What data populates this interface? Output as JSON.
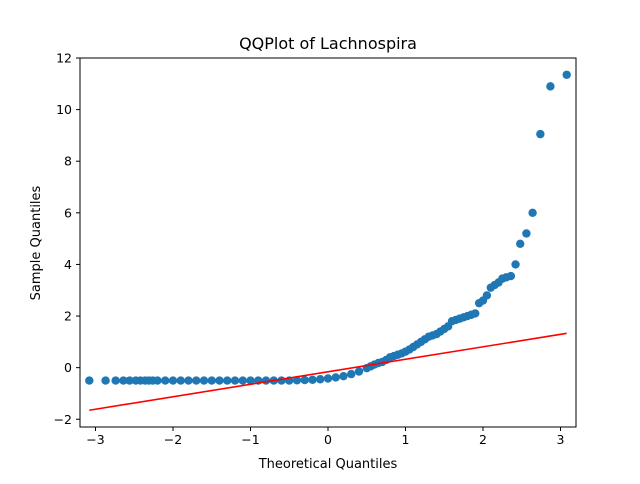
{
  "chart_data": {
    "type": "scatter",
    "title": "QQPlot of Lachnospira",
    "xlabel": "Theoretical Quantiles",
    "ylabel": "Sample Quantiles",
    "xlim": [
      -3.2,
      3.2
    ],
    "ylim": [
      -2.3,
      12
    ],
    "xticks": [
      -3,
      -2,
      -1,
      0,
      1,
      2,
      3
    ],
    "yticks": [
      -2,
      0,
      2,
      4,
      6,
      8,
      10,
      12
    ],
    "grid": false,
    "legend": "none",
    "marker_color": "#1f77b4",
    "line_color": "#ff0000",
    "reference_line": {
      "x": [
        -3.08,
        3.08
      ],
      "y": [
        -1.65,
        1.33
      ]
    },
    "series": [
      {
        "x": [
          -3.08,
          -2.87,
          -2.74,
          -2.64,
          -2.56,
          -2.48,
          -2.42,
          -2.36,
          -2.31,
          -2.26,
          -2.2,
          -2.1,
          -2.0,
          -1.9,
          -1.8,
          -1.7,
          -1.6,
          -1.5,
          -1.4,
          -1.3,
          -1.2,
          -1.1,
          -1.0,
          -0.9,
          -0.8,
          -0.7,
          -0.6,
          -0.5,
          -0.4,
          -0.3,
          -0.2,
          -0.1,
          0.0,
          0.1,
          0.2,
          0.3,
          0.4,
          0.5,
          0.55,
          0.6,
          0.65,
          0.7,
          0.75,
          0.8,
          0.85,
          0.9,
          0.95,
          1.0,
          1.05,
          1.1,
          1.15,
          1.2,
          1.25,
          1.3,
          1.35,
          1.4,
          1.45,
          1.5,
          1.55,
          1.6,
          1.65,
          1.7,
          1.75,
          1.8,
          1.85,
          1.9,
          1.95,
          2.0,
          2.05,
          2.1,
          2.15,
          2.2,
          2.25,
          2.3,
          2.36,
          2.42,
          2.48,
          2.56,
          2.64,
          2.74,
          2.87,
          3.08
        ],
        "y": [
          -0.5,
          -0.5,
          -0.5,
          -0.5,
          -0.5,
          -0.5,
          -0.5,
          -0.5,
          -0.5,
          -0.5,
          -0.5,
          -0.5,
          -0.5,
          -0.5,
          -0.5,
          -0.5,
          -0.5,
          -0.5,
          -0.5,
          -0.5,
          -0.5,
          -0.5,
          -0.5,
          -0.5,
          -0.5,
          -0.5,
          -0.5,
          -0.5,
          -0.49,
          -0.48,
          -0.47,
          -0.45,
          -0.42,
          -0.38,
          -0.33,
          -0.25,
          -0.15,
          -0.02,
          0.05,
          0.12,
          0.18,
          0.22,
          0.3,
          0.4,
          0.45,
          0.5,
          0.55,
          0.62,
          0.7,
          0.8,
          0.9,
          1.0,
          1.1,
          1.2,
          1.25,
          1.3,
          1.4,
          1.5,
          1.6,
          1.8,
          1.85,
          1.9,
          1.95,
          2.0,
          2.05,
          2.1,
          2.5,
          2.6,
          2.8,
          3.1,
          3.2,
          3.3,
          3.45,
          3.5,
          3.55,
          4.0,
          4.8,
          5.2,
          6.0,
          9.05,
          10.9,
          11.35
        ]
      }
    ]
  }
}
